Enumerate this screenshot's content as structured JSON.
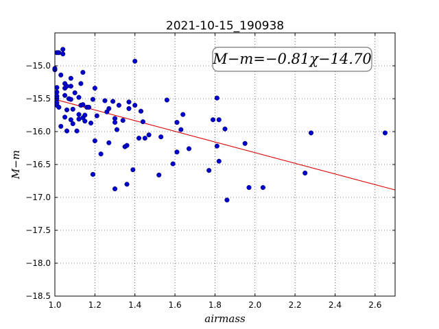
{
  "chart_data": {
    "type": "scatter",
    "title": "2021-10-15_190938",
    "xlabel": "airmass",
    "ylabel": "M−m",
    "xlim": [
      1.0,
      2.7
    ],
    "ylim": [
      -18.5,
      -14.5
    ],
    "y_inverted": true,
    "grid": true,
    "x_ticks": [
      "1.0",
      "1.2",
      "1.4",
      "1.6",
      "1.8",
      "2.0",
      "2.2",
      "2.4",
      "2.6"
    ],
    "y_ticks": [
      "−15.0",
      "−15.5",
      "−16.0",
      "−16.5",
      "−17.0",
      "−17.5",
      "−18.0",
      "−18.5"
    ],
    "annotation": "M−m=−0.81χ−14.70",
    "fit": {
      "slope": -0.81,
      "intercept": -14.7,
      "color": "#dd0000"
    },
    "point_color": "#0000cc",
    "points": [
      [
        1.0,
        -15.06
      ],
      [
        1.0,
        -15.04
      ],
      [
        1.01,
        -14.8
      ],
      [
        1.02,
        -14.8
      ],
      [
        1.01,
        -15.33
      ],
      [
        1.01,
        -15.4
      ],
      [
        1.01,
        -15.46
      ],
      [
        1.01,
        -15.5
      ],
      [
        1.01,
        -15.56
      ],
      [
        1.01,
        -15.6
      ],
      [
        1.02,
        -15.63
      ],
      [
        1.03,
        -15.14
      ],
      [
        1.04,
        -14.75
      ],
      [
        1.04,
        -14.82
      ],
      [
        1.03,
        -15.92
      ],
      [
        1.05,
        -15.27
      ],
      [
        1.05,
        -15.34
      ],
      [
        1.05,
        -15.45
      ],
      [
        1.06,
        -15.31
      ],
      [
        1.05,
        -15.78
      ],
      [
        1.06,
        -15.67
      ],
      [
        1.06,
        -15.99
      ],
      [
        1.07,
        -15.5
      ],
      [
        1.08,
        -15.51
      ],
      [
        1.08,
        -15.31
      ],
      [
        1.08,
        -15.19
      ],
      [
        1.08,
        -15.82
      ],
      [
        1.09,
        -15.66
      ],
      [
        1.09,
        -15.88
      ],
      [
        1.1,
        -15.41
      ],
      [
        1.11,
        -15.99
      ],
      [
        1.12,
        -15.48
      ],
      [
        1.12,
        -15.74
      ],
      [
        1.12,
        -15.81
      ],
      [
        1.13,
        -15.27
      ],
      [
        1.13,
        -15.6
      ],
      [
        1.14,
        -15.1
      ],
      [
        1.14,
        -15.59
      ],
      [
        1.14,
        -15.79
      ],
      [
        1.15,
        -15.75
      ],
      [
        1.15,
        -15.84
      ],
      [
        1.16,
        -15.63
      ],
      [
        1.17,
        -15.63
      ],
      [
        1.18,
        -15.87
      ],
      [
        1.19,
        -15.51
      ],
      [
        1.2,
        -15.34
      ],
      [
        1.2,
        -16.14
      ],
      [
        1.19,
        -16.65
      ],
      [
        1.21,
        -15.76
      ],
      [
        1.23,
        -16.34
      ],
      [
        1.25,
        -15.53
      ],
      [
        1.26,
        -15.7
      ],
      [
        1.27,
        -15.65
      ],
      [
        1.27,
        -16.17
      ],
      [
        1.29,
        -15.54
      ],
      [
        1.3,
        -15.8
      ],
      [
        1.3,
        -15.86
      ],
      [
        1.31,
        -15.97
      ],
      [
        1.32,
        -15.6
      ],
      [
        1.3,
        -16.87
      ],
      [
        1.34,
        -15.83
      ],
      [
        1.35,
        -16.23
      ],
      [
        1.36,
        -16.21
      ],
      [
        1.36,
        -16.8
      ],
      [
        1.37,
        -15.55
      ],
      [
        1.37,
        -15.65
      ],
      [
        1.39,
        -16.58
      ],
      [
        1.4,
        -15.6
      ],
      [
        1.4,
        -14.93
      ],
      [
        1.42,
        -16.1
      ],
      [
        1.43,
        -15.69
      ],
      [
        1.44,
        -15.85
      ],
      [
        1.45,
        -16.1
      ],
      [
        1.47,
        -16.05
      ],
      [
        1.52,
        -16.66
      ],
      [
        1.53,
        -16.08
      ],
      [
        1.56,
        -15.52
      ],
      [
        1.59,
        -16.49
      ],
      [
        1.61,
        -15.86
      ],
      [
        1.61,
        -16.31
      ],
      [
        1.63,
        -15.97
      ],
      [
        1.64,
        -15.74
      ],
      [
        1.67,
        -16.26
      ],
      [
        1.77,
        -16.59
      ],
      [
        1.79,
        -15.82
      ],
      [
        1.81,
        -15.49
      ],
      [
        1.81,
        -16.22
      ],
      [
        1.82,
        -15.82
      ],
      [
        1.82,
        -16.45
      ],
      [
        1.85,
        -15.96
      ],
      [
        1.86,
        -17.04
      ],
      [
        1.95,
        -16.18
      ],
      [
        1.97,
        -16.85
      ],
      [
        2.04,
        -16.85
      ],
      [
        2.25,
        -16.63
      ],
      [
        2.28,
        -16.02
      ],
      [
        2.65,
        -16.02
      ]
    ]
  }
}
